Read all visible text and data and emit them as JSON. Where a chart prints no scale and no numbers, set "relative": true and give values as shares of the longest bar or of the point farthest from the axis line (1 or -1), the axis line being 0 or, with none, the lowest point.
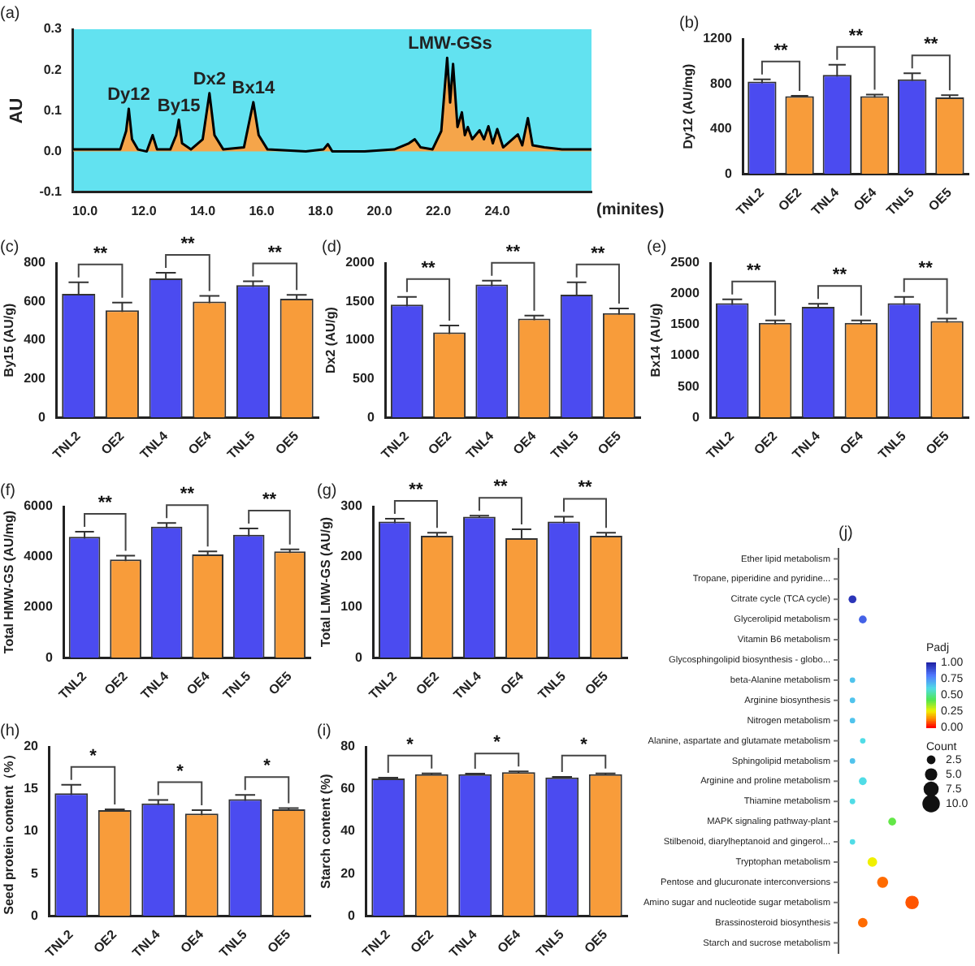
{
  "chart_data": [
    {
      "type": "area",
      "title": "(a)",
      "ylabel": "AU",
      "xlabel": "(minites)",
      "color": "#000000",
      "x": [
        9.6,
        10.5,
        11.2,
        11.4,
        11.49,
        11.6,
        11.8,
        12.1,
        12.3,
        12.45,
        12.9,
        13.1,
        13.19,
        13.3,
        13.6,
        14.0,
        14.23,
        14.4,
        14.7,
        15.4,
        15.6,
        15.72,
        15.9,
        16.2,
        17.5,
        18.1,
        18.25,
        18.4,
        19.5,
        20.5,
        21.0,
        21.2,
        21.4,
        21.8,
        22.1,
        22.3,
        22.4,
        22.5,
        22.65,
        22.8,
        22.9,
        23.0,
        23.15,
        23.4,
        23.55,
        23.7,
        23.85,
        24.0,
        24.2,
        24.7,
        24.85,
        25.04,
        25.2,
        25.6,
        26.2,
        27.2
      ],
      "values": [
        0.005,
        0.005,
        0.005,
        0.05,
        0.105,
        0.03,
        0.005,
        0.0,
        0.04,
        0.005,
        0.005,
        0.04,
        0.078,
        0.02,
        0.005,
        0.03,
        0.143,
        0.04,
        0.005,
        0.01,
        0.08,
        0.121,
        0.04,
        0.005,
        0.0,
        0.005,
        0.018,
        0.0,
        0.0,
        0.005,
        0.02,
        0.03,
        0.01,
        0.005,
        0.05,
        0.23,
        0.12,
        0.215,
        0.06,
        0.096,
        0.04,
        0.06,
        0.03,
        0.052,
        0.03,
        0.062,
        0.02,
        0.055,
        0.01,
        0.042,
        0.015,
        0.082,
        0.015,
        0.01,
        0.005,
        0.005
      ],
      "xlim": [
        9.6,
        27.2
      ],
      "xticks": [
        {
          "value": 10,
          "label": "10.0"
        },
        {
          "value": 12,
          "label": "12.0"
        },
        {
          "value": 14,
          "label": "14.0"
        },
        {
          "value": 16,
          "label": "16.0"
        },
        {
          "value": 18,
          "label": "18.0"
        },
        {
          "value": 20,
          "label": "20.0"
        },
        {
          "value": 22,
          "label": "22.0"
        },
        {
          "value": 24,
          "label": "24.0"
        }
      ],
      "ylim": [
        -0.1,
        0.3
      ],
      "yticks": [
        {
          "value": -0.1,
          "label": "-0.1"
        },
        {
          "value": 0,
          "label": "0.0"
        },
        {
          "value": 0.1,
          "label": "0.1"
        },
        {
          "value": 0.2,
          "label": "0.2"
        },
        {
          "value": 0.3,
          "label": "0.3"
        }
      ],
      "annotations": [
        {
          "text": "Dy12",
          "x": 11.49,
          "y": 0.105
        },
        {
          "text": "By15",
          "x": 13.19,
          "y": 0.078
        },
        {
          "text": "Dx2",
          "x": 14.23,
          "y": 0.143
        },
        {
          "text": "Bx14",
          "x": 15.72,
          "y": 0.121
        },
        {
          "text": "LMW-GSs",
          "x": 22.4,
          "y": 0.23
        }
      ]
    },
    {
      "type": "bar",
      "title": "(b)",
      "ylabel": "Dy12 (AU/mg)",
      "categories": [
        "TNL2",
        "OE2",
        "TNL4",
        "OE4",
        "TNL5",
        "OE5"
      ],
      "colors": [
        "#4b4bf0",
        "#f89c3a",
        "#4b4bf0",
        "#f89c3a",
        "#4b4bf0",
        "#f89c3a"
      ],
      "values": [
        820,
        690,
        880,
        690,
        840,
        680
      ],
      "errors": [
        20,
        5,
        90,
        15,
        55,
        20
      ],
      "ylim": [
        0,
        1200
      ],
      "yticks": [
        0,
        400,
        800,
        1200
      ],
      "annotations": [
        {
          "text": "**",
          "x": "TNL2",
          "y": 820
        },
        {
          "text": "**",
          "x": "TNL4",
          "y": 880
        },
        {
          "text": "**",
          "x": "TNL5",
          "y": 840
        }
      ]
    },
    {
      "type": "bar",
      "title": "(c)",
      "ylabel": "By15 (AU/g)",
      "categories": [
        "TNL2",
        "OE2",
        "TNL4",
        "OE4",
        "TNL5",
        "OE5"
      ],
      "colors": [
        "#4b4bf0",
        "#f89c3a",
        "#4b4bf0",
        "#f89c3a",
        "#4b4bf0",
        "#f89c3a"
      ],
      "values": [
        640,
        555,
        720,
        600,
        685,
        615
      ],
      "errors": [
        60,
        40,
        30,
        30,
        20,
        20
      ],
      "ylim": [
        0,
        800
      ],
      "yticks": [
        0,
        200,
        400,
        600,
        800
      ],
      "annotations": [
        {
          "text": "**",
          "x": "TNL2",
          "y": 640
        },
        {
          "text": "**",
          "x": "TNL4",
          "y": 720
        },
        {
          "text": "**",
          "x": "TNL5",
          "y": 685
        }
      ]
    },
    {
      "type": "bar",
      "title": "(d)",
      "ylabel": "Dx2 (AU/g)",
      "categories": [
        "TNL2",
        "OE2",
        "TNL4",
        "OE4",
        "TNL5",
        "OE5"
      ],
      "colors": [
        "#4b4bf0",
        "#f89c3a",
        "#4b4bf0",
        "#f89c3a",
        "#4b4bf0",
        "#f89c3a"
      ],
      "values": [
        1460,
        1100,
        1720,
        1280,
        1590,
        1350
      ],
      "errors": [
        100,
        90,
        50,
        40,
        160,
        60
      ],
      "ylim": [
        0,
        2000
      ],
      "yticks": [
        0,
        500,
        1000,
        1500,
        2000
      ],
      "annotations": [
        {
          "text": "**",
          "x": "TNL2",
          "y": 1460
        },
        {
          "text": "**",
          "x": "TNL4",
          "y": 1720
        },
        {
          "text": "**",
          "x": "TNL5",
          "y": 1590
        }
      ]
    },
    {
      "type": "bar",
      "title": "(e)",
      "ylabel": "Bx14 (AU/g)",
      "categories": [
        "TNL2",
        "OE2",
        "TNL4",
        "OE4",
        "TNL5",
        "OE5"
      ],
      "colors": [
        "#4b4bf0",
        "#f89c3a",
        "#4b4bf0",
        "#f89c3a",
        "#4b4bf0",
        "#f89c3a"
      ],
      "values": [
        1850,
        1530,
        1790,
        1530,
        1850,
        1560
      ],
      "errors": [
        60,
        40,
        50,
        40,
        100,
        40
      ],
      "ylim": [
        0,
        2500
      ],
      "yticks": [
        0,
        500,
        1000,
        1500,
        2000,
        2500
      ],
      "annotations": [
        {
          "text": "**",
          "x": "TNL2",
          "y": 1850
        },
        {
          "text": "**",
          "x": "TNL4",
          "y": 1790
        },
        {
          "text": "**",
          "x": "TNL5",
          "y": 1850
        }
      ]
    },
    {
      "type": "bar",
      "title": "(f)",
      "ylabel": "Total HMW-GS (AU/mg)",
      "categories": [
        "TNL2",
        "OE2",
        "TNL4",
        "OE4",
        "TNL5",
        "OE5"
      ],
      "colors": [
        "#4b4bf0",
        "#f89c3a",
        "#4b4bf0",
        "#f89c3a",
        "#4b4bf0",
        "#f89c3a"
      ],
      "values": [
        4800,
        3900,
        5200,
        4100,
        4880,
        4220
      ],
      "errors": [
        200,
        150,
        150,
        120,
        250,
        80
      ],
      "ylim": [
        0,
        6000
      ],
      "yticks": [
        0,
        2000,
        4000,
        6000
      ],
      "annotations": [
        {
          "text": "**",
          "x": "TNL2",
          "y": 4800
        },
        {
          "text": "**",
          "x": "TNL4",
          "y": 5200
        },
        {
          "text": "**",
          "x": "TNL5",
          "y": 4880
        }
      ]
    },
    {
      "type": "bar",
      "title": "(g)",
      "ylabel": "Total LMW-GS (AU/g)",
      "categories": [
        "TNL2",
        "OE2",
        "TNL4",
        "OE4",
        "TNL5",
        "OE5"
      ],
      "colors": [
        "#4b4bf0",
        "#f89c3a",
        "#4b4bf0",
        "#f89c3a",
        "#4b4bf0",
        "#f89c3a"
      ],
      "values": [
        270,
        242,
        280,
        237,
        270,
        242
      ],
      "errors": [
        6,
        6,
        2,
        18,
        10,
        6
      ],
      "ylim": [
        0,
        300
      ],
      "yticks": [
        0,
        100,
        200,
        300
      ],
      "annotations": [
        {
          "text": "**",
          "x": "TNL2",
          "y": 270
        },
        {
          "text": "**",
          "x": "TNL4",
          "y": 280
        },
        {
          "text": "**",
          "x": "TNL5",
          "y": 270
        }
      ]
    },
    {
      "type": "bar",
      "title": "(h)",
      "ylabel": "Seed protein content（%）",
      "categories": [
        "TNL2",
        "OE2",
        "TNL4",
        "OE4",
        "TNL5",
        "OE5"
      ],
      "colors": [
        "#4b4bf0",
        "#f89c3a",
        "#4b4bf0",
        "#f89c3a",
        "#4b4bf0",
        "#f89c3a"
      ],
      "values": [
        14.5,
        12.5,
        13.3,
        12.1,
        13.8,
        12.6
      ],
      "errors": [
        1.0,
        0.1,
        0.4,
        0.4,
        0.5,
        0.15
      ],
      "ylim": [
        0,
        20
      ],
      "yticks": [
        0,
        5,
        10,
        15,
        20
      ],
      "annotations": [
        {
          "text": "*",
          "x": "TNL2",
          "y": 14.5
        },
        {
          "text": "*",
          "x": "TNL4",
          "y": 13.3
        },
        {
          "text": "*",
          "x": "TNL5",
          "y": 13.8
        }
      ]
    },
    {
      "type": "bar",
      "title": "(i)",
      "ylabel": "Starch content (%)",
      "categories": [
        "TNL2",
        "OE2",
        "TNL4",
        "OE4",
        "TNL5",
        "OE5"
      ],
      "colors": [
        "#4b4bf0",
        "#f89c3a",
        "#4b4bf0",
        "#f89c3a",
        "#4b4bf0",
        "#f89c3a"
      ],
      "values": [
        65,
        67,
        67,
        68,
        65.5,
        67
      ],
      "errors": [
        0.4,
        0.4,
        0.3,
        0.4,
        0.3,
        0.4
      ],
      "ylim": [
        0,
        80
      ],
      "yticks": [
        0,
        20,
        40,
        60,
        80
      ],
      "annotations": [
        {
          "text": "*",
          "x": "TNL2",
          "y": 65
        },
        {
          "text": "*",
          "x": "TNL4",
          "y": 67
        },
        {
          "text": "*",
          "x": "TNL5",
          "y": 65.5
        }
      ]
    },
    {
      "type": "bubble",
      "title": "(j)",
      "orientation": "horizontal",
      "relative": true,
      "clabel": "Padj",
      "legend_title": "Count",
      "categories": [
        "Ether lipid metabolism",
        "Tropane, piperidine and pyridine...",
        "Citrate cycle (TCA cycle)",
        "Glycerolipid metabolism",
        "Vitamin B6 metabolism",
        "Glycosphingolipid biosynthesis - globo...",
        "beta-Alanine metabolism",
        "Arginine biosynthesis",
        "Nitrogen metabolism",
        "Alanine, aspartate and glutamate metabolism",
        "Sphingolipid metabolism",
        "Arginine and proline metabolism",
        "Thiamine metabolism",
        "MAPK signaling pathway-plant",
        "Stilbenoid, diarylheptanoid and gingerol...",
        "Tryptophan metabolism",
        "Pentose and glucuronate interconversions",
        "Amino sugar and nucleotide sugar metabolism",
        "Brassinosteroid biosynthesis",
        "Starch and sucrose metabolism"
      ],
      "values": [
        null,
        null,
        0.19,
        0.33,
        null,
        null,
        0.19,
        0.19,
        0.19,
        0.33,
        0.19,
        0.33,
        0.19,
        0.73,
        0.19,
        0.46,
        0.6,
        1,
        0.33,
        null
      ],
      "sizes": [
        null,
        null,
        2,
        2,
        null,
        null,
        1,
        1,
        1,
        1,
        1,
        2,
        1,
        2,
        1,
        3,
        4,
        6,
        3,
        null
      ],
      "cvalues": [
        null,
        null,
        0.95,
        0.85,
        null,
        null,
        0.65,
        0.65,
        0.65,
        0.6,
        0.65,
        0.6,
        0.6,
        0.4,
        0.6,
        0.25,
        0.1,
        0.08,
        0.1,
        null
      ],
      "clim": [
        0,
        1
      ],
      "cticks": [
        {
          "value": 1,
          "label": "1.00"
        },
        {
          "value": 0.75,
          "label": "0.75"
        },
        {
          "value": 0.5,
          "label": "0.50"
        },
        {
          "value": 0.25,
          "label": "0.25"
        },
        {
          "value": 0,
          "label": "0.00"
        }
      ],
      "size_legend": [
        {
          "value": 2.5,
          "label": "2.5"
        },
        {
          "value": 5,
          "label": "5.0"
        },
        {
          "value": 7.5,
          "label": "7.5"
        },
        {
          "value": 10,
          "label": "10.0"
        }
      ]
    }
  ]
}
